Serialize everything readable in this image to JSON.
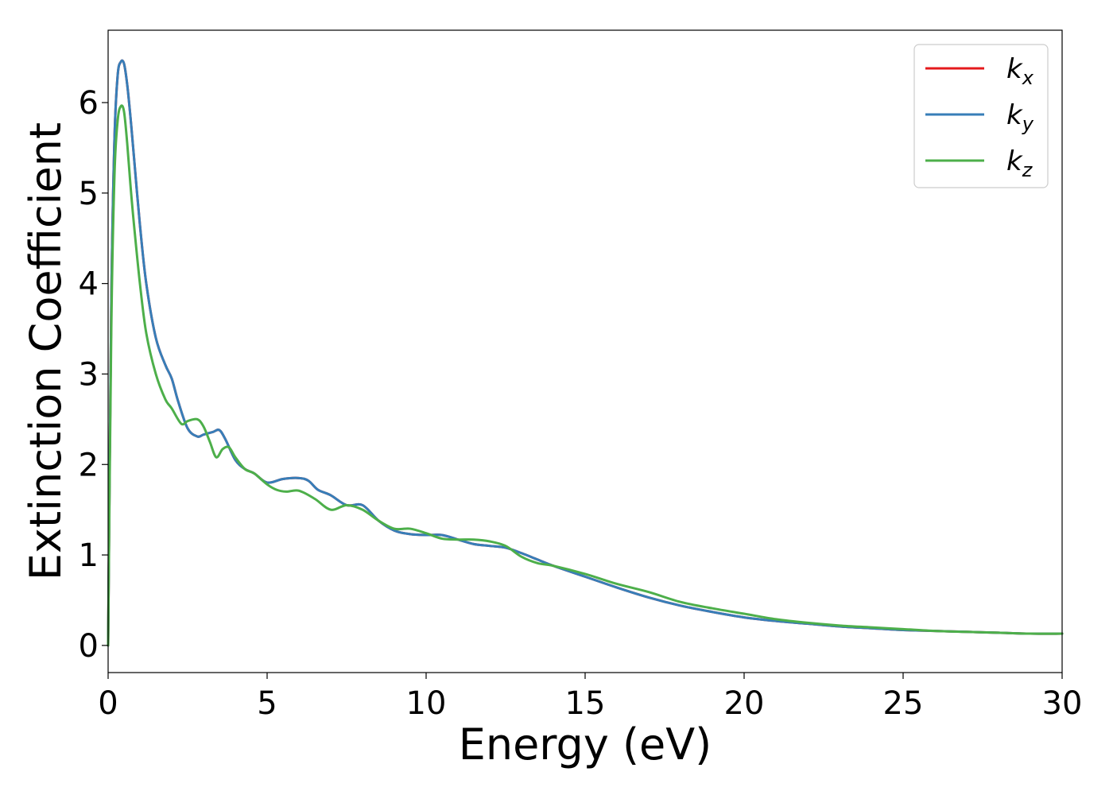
{
  "chart_data": {
    "type": "line",
    "xlabel": "Energy (eV)",
    "ylabel": "Extinction Coefficient",
    "xlim": [
      0,
      30
    ],
    "ylim": [
      -0.3,
      6.8
    ],
    "x_ticks": [
      "0",
      "5",
      "10",
      "15",
      "20",
      "25",
      "30"
    ],
    "y_ticks": [
      "0",
      "1",
      "2",
      "3",
      "4",
      "5",
      "6"
    ],
    "grid": false,
    "legend_position": "top-right",
    "series": [
      {
        "name": "k_x",
        "legend_base": "k",
        "legend_sub": "x",
        "color": "#e41a1c",
        "x": [
          0,
          0.1,
          0.2,
          0.3,
          0.4,
          0.5,
          0.6,
          0.7,
          0.8,
          1.0,
          1.2,
          1.5,
          1.8,
          2.0,
          2.2,
          2.5,
          2.8,
          3.0,
          3.3,
          3.5,
          3.7,
          4.0,
          4.3,
          4.6,
          5.0,
          5.5,
          6.0,
          6.3,
          6.6,
          7.0,
          7.5,
          8.0,
          8.5,
          9.0,
          9.5,
          10.0,
          10.5,
          11.0,
          11.5,
          12.0,
          12.5,
          13.0,
          13.5,
          14.0,
          15.0,
          16.0,
          17.0,
          18.0,
          19.0,
          20.0,
          21.0,
          22.0,
          23.0,
          24.0,
          25.0,
          26.0,
          27.0,
          28.0,
          29.0,
          30.0
        ],
        "y": [
          0,
          3.8,
          5.6,
          6.3,
          6.45,
          6.43,
          6.2,
          5.85,
          5.45,
          4.65,
          4.0,
          3.4,
          3.1,
          2.95,
          2.7,
          2.4,
          2.31,
          2.33,
          2.36,
          2.38,
          2.27,
          2.05,
          1.95,
          1.9,
          1.8,
          1.84,
          1.85,
          1.82,
          1.72,
          1.66,
          1.55,
          1.55,
          1.38,
          1.27,
          1.23,
          1.22,
          1.22,
          1.17,
          1.12,
          1.1,
          1.08,
          1.02,
          0.95,
          0.88,
          0.76,
          0.64,
          0.53,
          0.44,
          0.37,
          0.31,
          0.27,
          0.24,
          0.21,
          0.19,
          0.17,
          0.16,
          0.15,
          0.14,
          0.13,
          0.13
        ]
      },
      {
        "name": "k_y",
        "legend_base": "k",
        "legend_sub": "y",
        "color": "#377eb8",
        "x": [
          0,
          0.1,
          0.2,
          0.3,
          0.4,
          0.5,
          0.6,
          0.7,
          0.8,
          1.0,
          1.2,
          1.5,
          1.8,
          2.0,
          2.2,
          2.5,
          2.8,
          3.0,
          3.3,
          3.5,
          3.7,
          4.0,
          4.3,
          4.6,
          5.0,
          5.5,
          6.0,
          6.3,
          6.6,
          7.0,
          7.5,
          8.0,
          8.5,
          9.0,
          9.5,
          10.0,
          10.5,
          11.0,
          11.5,
          12.0,
          12.5,
          13.0,
          13.5,
          14.0,
          15.0,
          16.0,
          17.0,
          18.0,
          19.0,
          20.0,
          21.0,
          22.0,
          23.0,
          24.0,
          25.0,
          26.0,
          27.0,
          28.0,
          29.0,
          30.0
        ],
        "y": [
          0,
          3.8,
          5.6,
          6.3,
          6.45,
          6.43,
          6.2,
          5.85,
          5.45,
          4.65,
          4.0,
          3.4,
          3.1,
          2.95,
          2.7,
          2.4,
          2.31,
          2.33,
          2.36,
          2.38,
          2.27,
          2.05,
          1.95,
          1.9,
          1.8,
          1.84,
          1.85,
          1.82,
          1.72,
          1.66,
          1.55,
          1.55,
          1.38,
          1.27,
          1.23,
          1.22,
          1.22,
          1.17,
          1.12,
          1.1,
          1.08,
          1.02,
          0.95,
          0.88,
          0.76,
          0.64,
          0.53,
          0.44,
          0.37,
          0.31,
          0.27,
          0.24,
          0.21,
          0.19,
          0.17,
          0.16,
          0.15,
          0.14,
          0.13,
          0.13
        ]
      },
      {
        "name": "k_z",
        "legend_base": "k",
        "legend_sub": "z",
        "color": "#4daf4a",
        "x": [
          0,
          0.1,
          0.2,
          0.3,
          0.4,
          0.5,
          0.6,
          0.7,
          0.8,
          1.0,
          1.2,
          1.5,
          1.8,
          2.0,
          2.3,
          2.5,
          2.8,
          3.0,
          3.2,
          3.4,
          3.6,
          3.8,
          4.0,
          4.3,
          4.6,
          5.0,
          5.3,
          5.6,
          6.0,
          6.5,
          7.0,
          7.5,
          8.0,
          8.5,
          9.0,
          9.5,
          10.0,
          10.5,
          11.0,
          11.5,
          12.0,
          12.5,
          13.0,
          13.5,
          14.0,
          15.0,
          16.0,
          17.0,
          18.0,
          19.0,
          20.0,
          21.0,
          22.0,
          23.0,
          24.0,
          25.0,
          26.0,
          27.0,
          28.0,
          29.0,
          30.0
        ],
        "y": [
          0,
          3.5,
          5.2,
          5.8,
          5.96,
          5.9,
          5.55,
          5.1,
          4.7,
          4.0,
          3.45,
          3.0,
          2.72,
          2.62,
          2.45,
          2.48,
          2.5,
          2.42,
          2.25,
          2.08,
          2.17,
          2.19,
          2.08,
          1.95,
          1.9,
          1.78,
          1.72,
          1.7,
          1.71,
          1.62,
          1.5,
          1.55,
          1.5,
          1.38,
          1.29,
          1.29,
          1.24,
          1.18,
          1.17,
          1.17,
          1.15,
          1.1,
          0.98,
          0.91,
          0.88,
          0.79,
          0.68,
          0.59,
          0.48,
          0.41,
          0.35,
          0.29,
          0.25,
          0.22,
          0.2,
          0.18,
          0.16,
          0.15,
          0.14,
          0.13,
          0.13
        ]
      }
    ]
  }
}
